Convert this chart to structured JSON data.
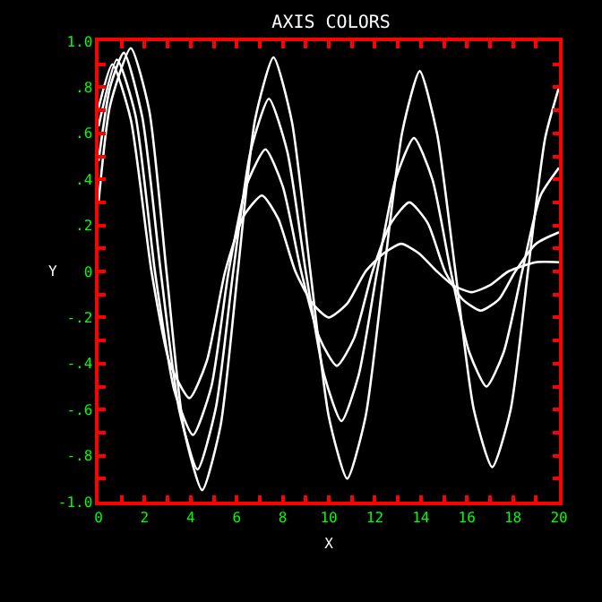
{
  "chart_data": {
    "type": "line",
    "title": "AXIS COLORS",
    "xlabel": "X",
    "ylabel": "Y",
    "xlim": [
      0,
      20
    ],
    "ylim": [
      -1.0,
      1.0
    ],
    "xticks": [
      0,
      {
        "value": 1,
        "label": null
      },
      2,
      {
        "value": 3,
        "label": null
      },
      4,
      {
        "value": 5,
        "label": null
      },
      6,
      {
        "value": 7,
        "label": null
      },
      8,
      {
        "value": 9,
        "label": null
      },
      10,
      {
        "value": 11,
        "label": null
      },
      12,
      {
        "value": 13,
        "label": null
      },
      14,
      {
        "value": 15,
        "label": null
      },
      16,
      {
        "value": 17,
        "label": null
      },
      18,
      {
        "value": 19,
        "label": null
      },
      20
    ],
    "yticks": [
      {
        "value": -1.0,
        "label": "-1.0"
      },
      {
        "value": -0.9,
        "label": null
      },
      {
        "value": -0.8,
        "label": "-.8"
      },
      {
        "value": -0.7,
        "label": null
      },
      {
        "value": -0.6,
        "label": "-.6"
      },
      {
        "value": -0.5,
        "label": null
      },
      {
        "value": -0.4,
        "label": "-.4"
      },
      {
        "value": -0.3,
        "label": null
      },
      {
        "value": -0.2,
        "label": "-.2"
      },
      {
        "value": -0.1,
        "label": null
      },
      0,
      {
        "value": 0.1,
        "label": null
      },
      {
        "value": 0.2,
        "label": ".2"
      },
      {
        "value": 0.3,
        "label": null
      },
      {
        "value": 0.4,
        "label": ".4"
      },
      {
        "value": 0.5,
        "label": null
      },
      {
        "value": 0.6,
        "label": ".6"
      },
      {
        "value": 0.7,
        "label": null
      },
      {
        "value": 0.8,
        "label": ".8"
      },
      {
        "value": 0.9,
        "label": null
      },
      {
        "value": 1.0,
        "label": "1.0"
      }
    ],
    "grid": false,
    "marker": "none",
    "line_style": "solid",
    "series": [
      {
        "color": "#ffffff",
        "x": [
          0,
          0.5,
          1.4,
          2.2,
          2.95,
          3.7,
          4.5,
          5.3,
          6.05,
          6.8,
          7.6,
          8.4,
          9.2,
          10.0,
          10.8,
          11.6,
          12.4,
          13.2,
          13.95,
          14.7,
          15.5,
          16.3,
          17.1,
          17.9,
          18.65,
          19.4,
          20
        ],
        "values": [
          0.3,
          0.72,
          0.97,
          0.7,
          0,
          -0.68,
          -0.95,
          -0.67,
          0,
          0.66,
          0.93,
          0.65,
          0,
          -0.63,
          -0.9,
          -0.63,
          0,
          0.61,
          0.87,
          0.6,
          0,
          -0.6,
          -0.85,
          -0.6,
          0,
          0.58,
          0.8
        ]
      },
      {
        "color": "#ffffff",
        "x": [
          0,
          0.5,
          1.1,
          1.9,
          2.7,
          3.5,
          4.3,
          5.1,
          5.85,
          6.6,
          7.4,
          8.2,
          9.0,
          9.8,
          10.55,
          11.3,
          12.1,
          12.9,
          13.7,
          14.5,
          15.3,
          16.1,
          16.85,
          17.6,
          18.4,
          19.2,
          20
        ],
        "values": [
          0.48,
          0.8,
          0.95,
          0.67,
          0,
          -0.6,
          -0.86,
          -0.59,
          0,
          0.52,
          0.75,
          0.52,
          0,
          -0.45,
          -0.65,
          -0.45,
          0,
          0.4,
          0.58,
          0.4,
          0,
          -0.35,
          -0.5,
          -0.35,
          0,
          0.33,
          0.45
        ]
      },
      {
        "color": "#ffffff",
        "x": [
          0,
          0.8,
          1.6,
          2.45,
          3.3,
          4.1,
          4.9,
          5.65,
          6.45,
          7.25,
          8.0,
          8.8,
          9.6,
          10.35,
          11.1,
          11.9,
          12.7,
          13.5,
          14.3,
          15.05,
          15.8,
          16.6,
          17.4,
          18.1,
          19.0,
          20
        ],
        "values": [
          0.63,
          0.92,
          0.68,
          0,
          -0.52,
          -0.71,
          -0.5,
          0,
          0.38,
          0.53,
          0.37,
          0,
          -0.29,
          -0.41,
          -0.29,
          0,
          0.21,
          0.3,
          0.21,
          0,
          -0.12,
          -0.17,
          -0.12,
          0,
          0.12,
          0.17
        ]
      },
      {
        "color": "#ffffff",
        "x": [
          0,
          0.6,
          1.4,
          2.3,
          3.1,
          3.95,
          4.7,
          5.5,
          6.3,
          7.1,
          7.8,
          8.55,
          9.3,
          10.0,
          10.8,
          11.6,
          12.4,
          13.15,
          13.9,
          14.7,
          15.4,
          16.2,
          17.0,
          17.8,
          19.0,
          20
        ],
        "values": [
          0.71,
          0.9,
          0.66,
          0,
          -0.4,
          -0.55,
          -0.39,
          0,
          0.24,
          0.33,
          0.23,
          0,
          -0.14,
          -0.2,
          -0.14,
          0,
          0.08,
          0.12,
          0.08,
          0,
          -0.06,
          -0.09,
          -0.06,
          0,
          0.04,
          0.04
        ]
      }
    ]
  }
}
